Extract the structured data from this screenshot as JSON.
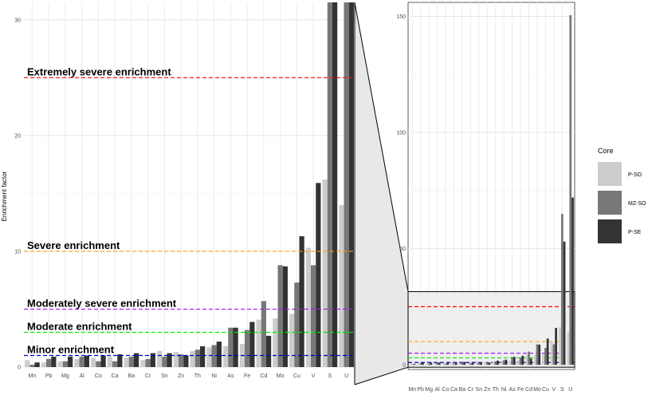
{
  "chart_data": {
    "type": "bar",
    "ylabel": "Enrichment factor",
    "xlabel": "",
    "categories": [
      "Mn",
      "Pb",
      "Mg",
      "Al",
      "Co",
      "Ca",
      "Ba",
      "Cr",
      "Sn",
      "Zn",
      "Th",
      "Ni",
      "As",
      "Fe",
      "Cd",
      "Mo",
      "Cu",
      "V",
      "S",
      "U"
    ],
    "series": [
      {
        "name": "P-SO",
        "color": "#cccccc",
        "values": [
          0.6,
          0.4,
          0.5,
          0.7,
          0.8,
          0.9,
          0.8,
          0.6,
          1.4,
          1.3,
          1.4,
          1.7,
          1.8,
          2.0,
          4.1,
          4.2,
          4.6,
          10.3,
          16.2,
          14.0
        ]
      },
      {
        "name": "MZ-SO",
        "color": "#777777",
        "values": [
          0.2,
          0.7,
          0.5,
          0.9,
          0.5,
          0.5,
          0.9,
          0.7,
          0.9,
          1.1,
          1.5,
          1.9,
          3.4,
          3.2,
          5.7,
          8.8,
          7.3,
          8.8,
          65.0,
          150.5
        ]
      },
      {
        "name": "P-SE",
        "color": "#333333",
        "values": [
          0.4,
          0.9,
          0.9,
          1.0,
          1.0,
          1.1,
          1.2,
          1.2,
          1.2,
          1.0,
          1.8,
          2.2,
          3.4,
          3.9,
          2.7,
          8.7,
          11.3,
          15.9,
          53.0,
          72.0
        ]
      }
    ],
    "panels": [
      {
        "ylim": [
          0,
          31.5
        ],
        "yticks": [
          0,
          10,
          20,
          30
        ]
      },
      {
        "ylim": [
          -2,
          156
        ],
        "yticks": [
          0,
          50,
          100,
          150
        ]
      }
    ],
    "reference_lines": [
      {
        "value": 25,
        "label": "Extremely severe enrichment",
        "color": "#ff0000"
      },
      {
        "value": 10,
        "label": "Severe enrichment",
        "color": "#ffa500"
      },
      {
        "value": 5,
        "label": "Moderately severe enrichment",
        "color": "#a020f0"
      },
      {
        "value": 3,
        "label": "Moderate enrichment",
        "color": "#00ee00"
      },
      {
        "value": 1,
        "label": "Minor enrichment",
        "color": "#0000cd"
      }
    ],
    "zoom_region": [
      0,
      31.5
    ],
    "grid": true,
    "legend": {
      "title": "Core",
      "placement": "right"
    }
  }
}
